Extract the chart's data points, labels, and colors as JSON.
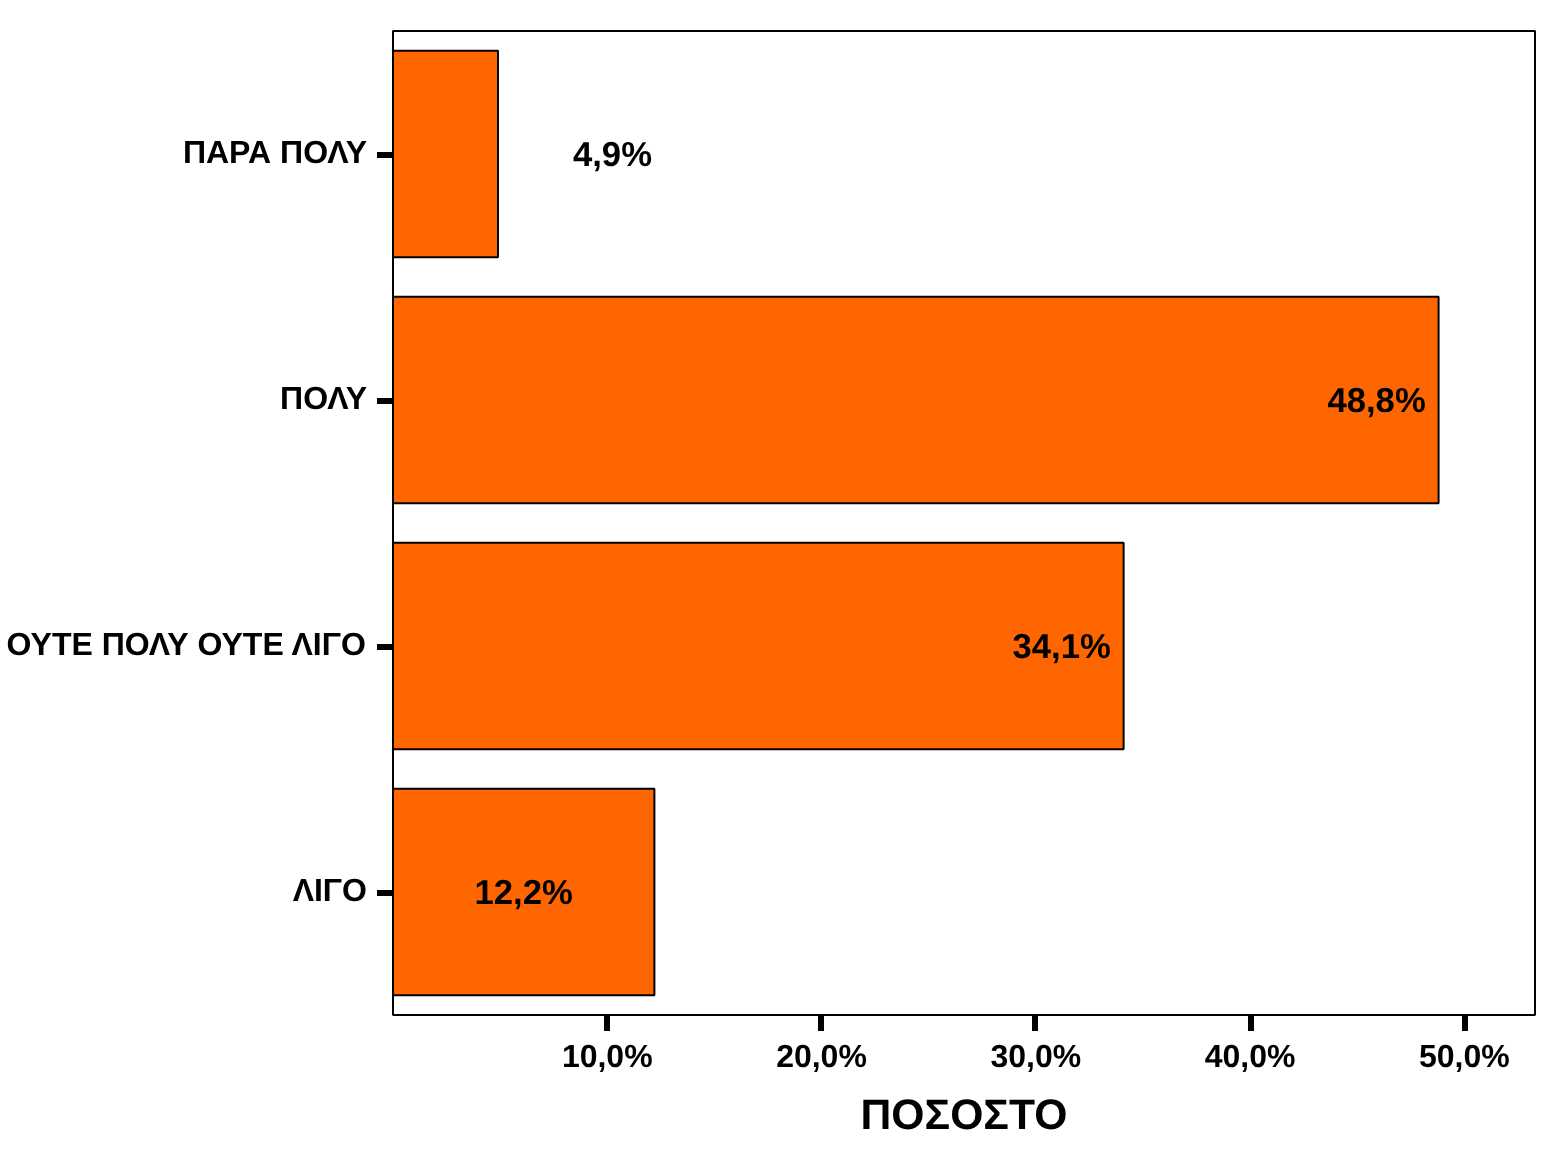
{
  "chart_data": {
    "type": "bar",
    "orientation": "horizontal",
    "xlabel": "ΠΟΣΟΣΤΟ",
    "categories": [
      "ΠΑΡΑ ΠΟΛΥ",
      "ΠΟΛΥ",
      "ΟΥΤΕ ΠΟΛΥ ΟΥΤΕ ΛΙΓΟ",
      "ΛΙΓΟ"
    ],
    "values": [
      4.9,
      48.8,
      34.1,
      12.2
    ],
    "value_labels": [
      "4,9%",
      "48,8%",
      "34,1%",
      "12,2%"
    ],
    "color": "#ff6600",
    "xlim": [
      0,
      53.3
    ],
    "xticks": [
      {
        "value": 10,
        "label": "10,0%"
      },
      {
        "value": 20,
        "label": "20,0%"
      },
      {
        "value": 30,
        "label": "30,0%"
      },
      {
        "value": 40,
        "label": "40,0%"
      },
      {
        "value": 50,
        "label": "50,0%"
      }
    ],
    "grid": false
  }
}
